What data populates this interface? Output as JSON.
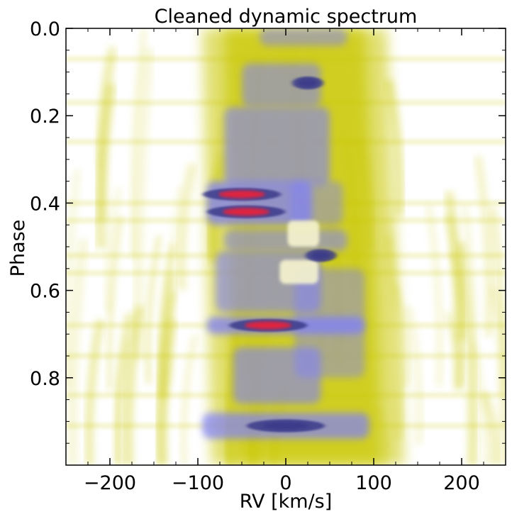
{
  "chart_data": {
    "type": "heatmap",
    "title": "Cleaned dynamic spectrum",
    "xlabel": "RV [km/s]",
    "ylabel": "Phase",
    "xlim": [
      -250,
      250
    ],
    "ylim": [
      0.0,
      1.0
    ],
    "y_inverted": true,
    "x_ticks": [
      -200,
      -100,
      0,
      100,
      200
    ],
    "x_tick_labels": [
      "−200",
      "−100",
      "0",
      "100",
      "200"
    ],
    "y_ticks": [
      0.0,
      0.2,
      0.4,
      0.6,
      0.8
    ],
    "y_tick_labels": [
      "0.0",
      "0.2",
      "0.4",
      "0.6",
      "0.8"
    ],
    "colormap": [
      {
        "level": 0.0,
        "color": "#ffffff"
      },
      {
        "level": 0.35,
        "color": "#c9c700"
      },
      {
        "level": 0.6,
        "color": "#7f7fff"
      },
      {
        "level": 0.8,
        "color": "#3b3b8a"
      },
      {
        "level": 1.0,
        "color": "#e8203a"
      }
    ],
    "absorption_band": {
      "center_rv_top": 10,
      "center_rv_bottom": 20,
      "halfwidth": 80
    },
    "features": [
      {
        "name": "red-spot-0.12",
        "rv": 25,
        "phase": 0.125,
        "intensity": 0.9
      },
      {
        "name": "red-spot-0.38",
        "rv": -50,
        "phase": 0.38,
        "intensity": 1.0
      },
      {
        "name": "red-spot-0.42",
        "rv": -45,
        "phase": 0.42,
        "intensity": 0.95
      },
      {
        "name": "red-spot-0.52",
        "rv": 40,
        "phase": 0.52,
        "intensity": 0.85
      },
      {
        "name": "red-spot-0.68",
        "rv": -20,
        "phase": 0.68,
        "intensity": 1.0
      },
      {
        "name": "dark-spot-0.91",
        "rv": 0,
        "phase": 0.91,
        "intensity": 0.8
      }
    ]
  }
}
